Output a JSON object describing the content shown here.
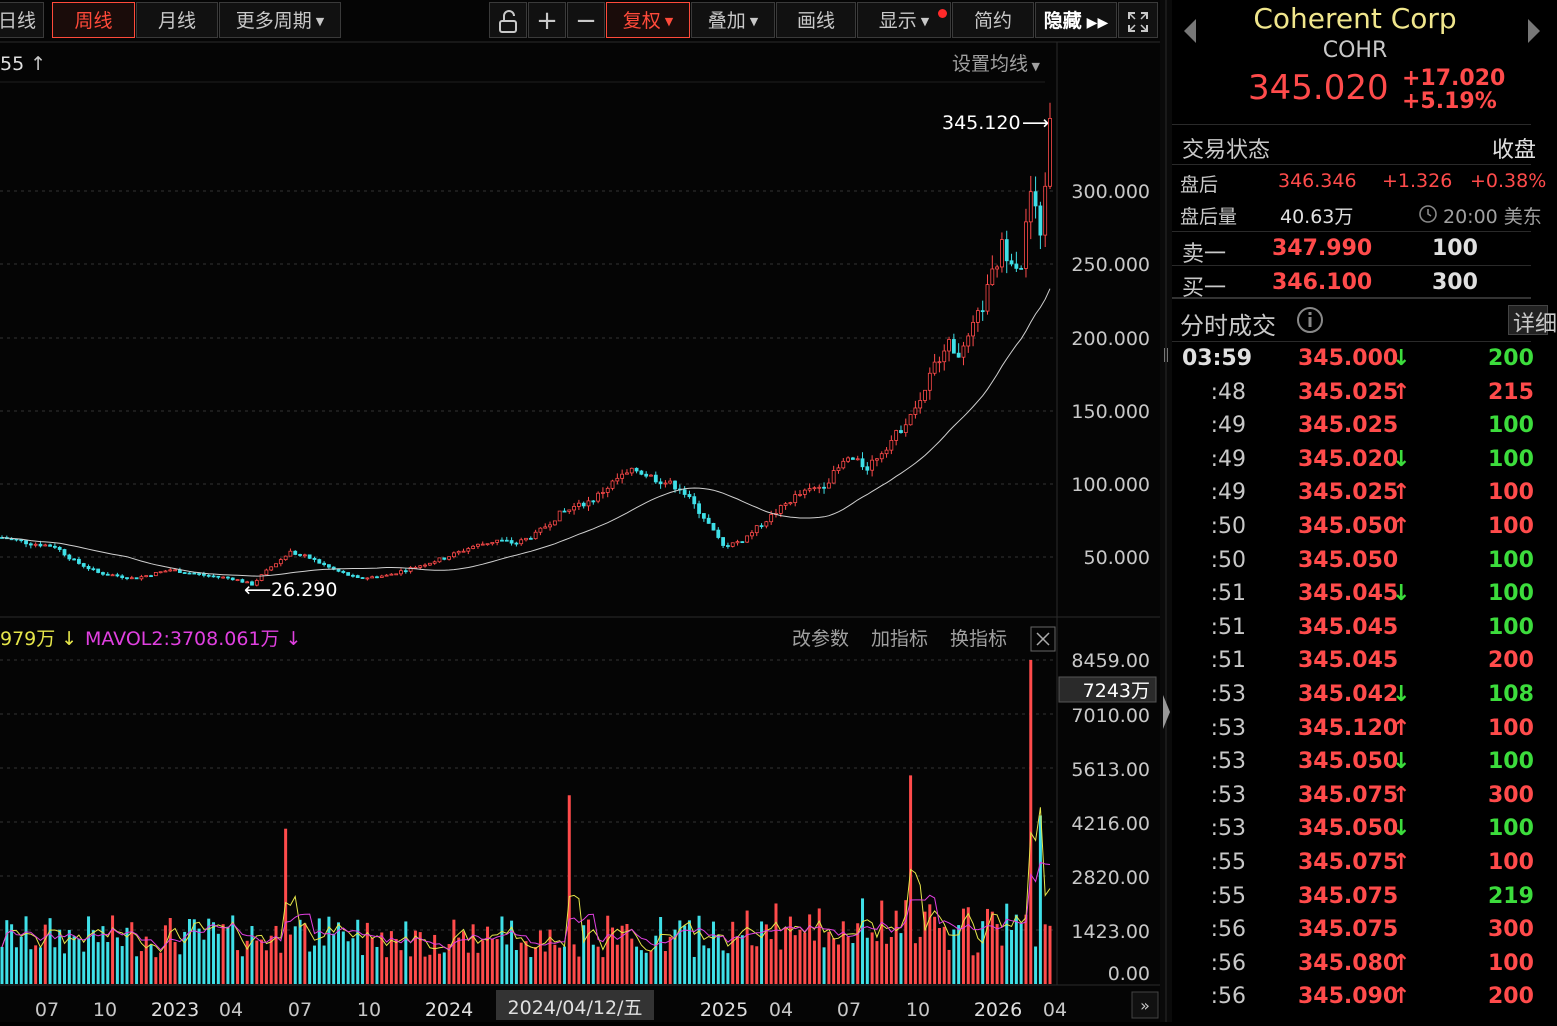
{
  "toolbar": {
    "tabs": [
      {
        "label": "日线",
        "active": false
      },
      {
        "label": "周线",
        "active": true
      },
      {
        "label": "月线",
        "active": false
      },
      {
        "label": "更多周期",
        "active": false
      }
    ],
    "unlock_icon": "unlock-icon",
    "zoom_in_icon": "plus-icon",
    "zoom_out_icon": "minus-icon",
    "fuquan": "复权",
    "diejia": "叠加",
    "huaxian": "画线",
    "xianshi": "显示",
    "jianyue": "简约",
    "yincang": "隐藏",
    "fullscreen_icon": "fullscreen-icon"
  },
  "price_chart": {
    "ma_label": "55",
    "settings_label": "设置均线",
    "high_label": "345.120",
    "low_label": "26.290",
    "y_ticks": [
      "300.000",
      "250.000",
      "200.000",
      "150.000",
      "100.000",
      "50.000"
    ]
  },
  "volume_chart": {
    "mavol1_label": "979万",
    "mavol2_label": "MAVOL2:3708.061万",
    "edit_params": "改参数",
    "add_indicator": "加指标",
    "switch_indicator": "换指标",
    "close_icon": "close-icon",
    "current_vol_label": "7243万",
    "y_ticks": [
      "8459.00",
      "7010.00",
      "5613.00",
      "4216.00",
      "2820.00",
      "1423.00",
      "0.00"
    ]
  },
  "x_axis": {
    "labels": [
      "07",
      "10",
      "2023",
      "04",
      "07",
      "10",
      "2024",
      "2024/04/12/五",
      "2025",
      "04",
      "07",
      "10",
      "2026",
      "04"
    ]
  },
  "colors": {
    "up": "#ff4b4b",
    "candle_up_body": "#ff5c5c",
    "down": "#3fe0e8",
    "ma_line": "#d0d0d0",
    "mavol1": "#e6e64a",
    "mavol2": "#e040e0",
    "accent": "#ff4a3a",
    "title_yellow": "#f0e68c",
    "green": "#3cdc3c"
  },
  "quote": {
    "company": "Coherent Corp",
    "ticker": "COHR",
    "price": "345.020",
    "change": "+17.020",
    "change_pct": "+5.19%",
    "status_label": "交易状态",
    "status_value": "收盘",
    "after_hours_label": "盘后",
    "after_hours_price": "346.346",
    "after_hours_change": "+1.326",
    "after_hours_pct": "+0.38%",
    "after_hours_vol_label": "盘后量",
    "after_hours_vol": "40.63万",
    "after_hours_time": "20:00 美东",
    "clock_icon": "clock-icon",
    "ask_label": "卖一",
    "ask_price": "347.990",
    "ask_size": "100",
    "bid_label": "买一",
    "bid_price": "346.100",
    "bid_size": "300"
  },
  "trades": {
    "title": "分时成交",
    "info_icon": "info-icon",
    "detail_label": "详细",
    "rows": [
      {
        "time": "03:59",
        "price": "345.000",
        "dir": "down",
        "vol": "200"
      },
      {
        "time": ":48",
        "price": "345.025",
        "dir": "up",
        "vol": "215"
      },
      {
        "time": ":49",
        "price": "345.025",
        "dir": "none",
        "vol": "100"
      },
      {
        "time": ":49",
        "price": "345.020",
        "dir": "down",
        "vol": "100"
      },
      {
        "time": ":49",
        "price": "345.025",
        "dir": "up",
        "vol": "100"
      },
      {
        "time": ":50",
        "price": "345.050",
        "dir": "up",
        "vol": "100"
      },
      {
        "time": ":50",
        "price": "345.050",
        "dir": "none",
        "vol": "100"
      },
      {
        "time": ":51",
        "price": "345.045",
        "dir": "down",
        "vol": "100"
      },
      {
        "time": ":51",
        "price": "345.045",
        "dir": "none",
        "vol": "100"
      },
      {
        "time": ":51",
        "price": "345.045",
        "dir": "none",
        "vol": "200"
      },
      {
        "time": ":53",
        "price": "345.042",
        "dir": "down",
        "vol": "108"
      },
      {
        "time": ":53",
        "price": "345.120",
        "dir": "up",
        "vol": "100"
      },
      {
        "time": ":53",
        "price": "345.050",
        "dir": "down",
        "vol": "100"
      },
      {
        "time": ":53",
        "price": "345.075",
        "dir": "up",
        "vol": "300"
      },
      {
        "time": ":53",
        "price": "345.050",
        "dir": "down",
        "vol": "100"
      },
      {
        "time": ":55",
        "price": "345.075",
        "dir": "up",
        "vol": "100"
      },
      {
        "time": ":55",
        "price": "345.075",
        "dir": "none",
        "vol": "219"
      },
      {
        "time": ":56",
        "price": "345.075",
        "dir": "none",
        "vol": "300"
      },
      {
        "time": ":56",
        "price": "345.080",
        "dir": "up",
        "vol": "100"
      },
      {
        "time": ":56",
        "price": "345.090",
        "dir": "up",
        "vol": "200"
      }
    ]
  }
}
